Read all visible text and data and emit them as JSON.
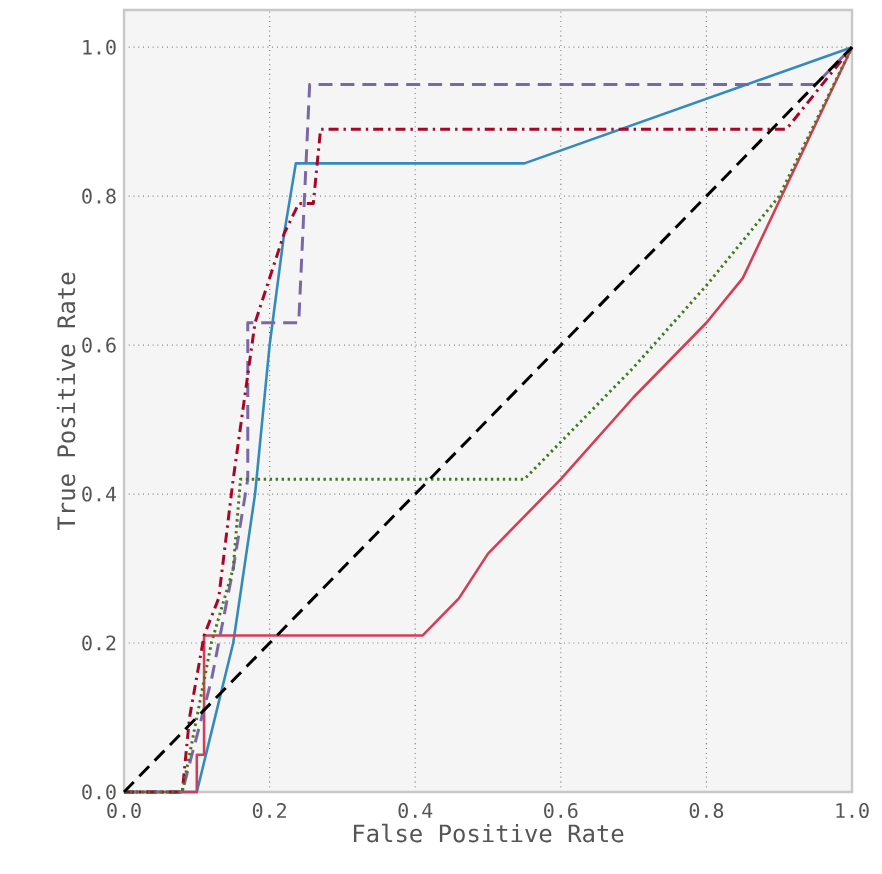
{
  "chart_data": {
    "type": "line",
    "xlabel": "False Positive Rate",
    "ylabel": "True Positive Rate",
    "xlim": [
      0,
      1
    ],
    "ylim": [
      0,
      1.05
    ],
    "xticks": [
      {
        "value": 0,
        "label": "0.0"
      },
      {
        "value": 0.2,
        "label": "0.2"
      },
      {
        "value": 0.4,
        "label": "0.4"
      },
      {
        "value": 0.6,
        "label": "0.6"
      },
      {
        "value": 0.8,
        "label": "0.8"
      },
      {
        "value": 1,
        "label": "1.0"
      }
    ],
    "yticks": [
      {
        "value": 0,
        "label": "0.0"
      },
      {
        "value": 0.2,
        "label": "0.2"
      },
      {
        "value": 0.4,
        "label": "0.4"
      },
      {
        "value": 0.6,
        "label": "0.6"
      },
      {
        "value": 0.8,
        "label": "0.8"
      },
      {
        "value": 1,
        "label": "1.0"
      }
    ],
    "grid": true,
    "marker": "none",
    "series": [
      {
        "color": "#348abd",
        "line_style": "solid",
        "x": [
          0,
          0.1,
          0.12,
          0.15,
          0.18,
          0.2,
          0.22,
          0.236,
          0.55,
          1
        ],
        "values": [
          0,
          0,
          0.08,
          0.2,
          0.4,
          0.6,
          0.75,
          0.844,
          0.844,
          1
        ]
      },
      {
        "color": "#d33e55",
        "line_style": "solid",
        "x": [
          0,
          0.1,
          0.1,
          0.11,
          0.11,
          0.41,
          0.46,
          0.5,
          0.55,
          0.6,
          0.7,
          0.8,
          0.85,
          1
        ],
        "values": [
          0,
          0,
          0.05,
          0.05,
          0.21,
          0.21,
          0.26,
          0.32,
          0.37,
          0.42,
          0.53,
          0.63,
          0.69,
          1
        ]
      },
      {
        "color": "#7a68a6",
        "line_style": "dashed",
        "x": [
          0,
          0.08,
          0.12,
          0.15,
          0.17,
          0.17,
          0.24,
          0.255,
          0.95,
          1
        ],
        "values": [
          0,
          0,
          0.15,
          0.3,
          0.42,
          0.63,
          0.63,
          0.95,
          0.95,
          1
        ]
      },
      {
        "color": "#a60628",
        "line_style": "dashdot",
        "x": [
          0,
          0.08,
          0.09,
          0.11,
          0.13,
          0.15,
          0.18,
          0.22,
          0.24,
          0.26,
          0.27,
          0.91,
          1
        ],
        "values": [
          0,
          0,
          0.1,
          0.21,
          0.26,
          0.42,
          0.63,
          0.75,
          0.79,
          0.79,
          0.89,
          0.89,
          1
        ]
      },
      {
        "color": "#467821",
        "line_style": "dotted",
        "x": [
          0,
          0.08,
          0.1,
          0.12,
          0.15,
          0.16,
          0.55,
          0.6,
          0.7,
          0.8,
          0.9,
          1
        ],
        "values": [
          0,
          0,
          0.1,
          0.2,
          0.3,
          0.42,
          0.42,
          0.47,
          0.57,
          0.68,
          0.8,
          1
        ]
      },
      {
        "color": "#000000",
        "line_style": "dashed",
        "x": [
          0,
          1
        ],
        "values": [
          0,
          1
        ]
      }
    ]
  }
}
